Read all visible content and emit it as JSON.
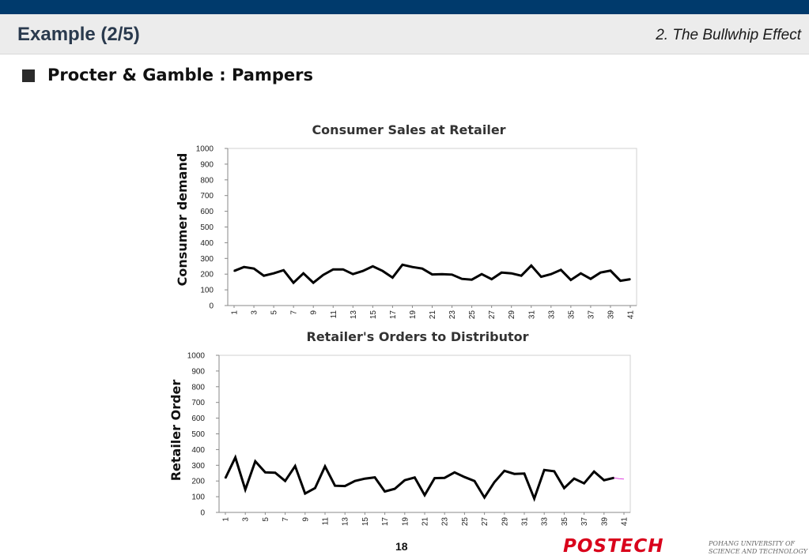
{
  "header": {
    "slide_title": "Example (2/5)",
    "section_title": "2. The Bullwhip Effect"
  },
  "bullet": {
    "text": "Procter & Gamble : Pampers"
  },
  "colors": {
    "top_band": "#003a6c",
    "header_bg": "#ececec",
    "series_line": "#000000",
    "logo": "#d9001b",
    "tail_line": "#e040e0"
  },
  "chart_data": [
    {
      "type": "line",
      "title": "Consumer Sales at Retailer",
      "ylabel": "Consumer demand",
      "xlabel": "",
      "ylim": [
        0,
        1000
      ],
      "ystep": 100,
      "x_tick_labels": [
        "1",
        "3",
        "5",
        "7",
        "9",
        "11",
        "13",
        "15",
        "17",
        "19",
        "21",
        "23",
        "25",
        "27",
        "29",
        "31",
        "33",
        "35",
        "37",
        "39",
        "41"
      ],
      "x": [
        1,
        2,
        3,
        4,
        5,
        6,
        7,
        8,
        9,
        10,
        11,
        12,
        13,
        14,
        15,
        16,
        17,
        18,
        19,
        20,
        21,
        22,
        23,
        24,
        25,
        26,
        27,
        28,
        29,
        30,
        31,
        32,
        33,
        34,
        35,
        36,
        37,
        38,
        39,
        40,
        41
      ],
      "values": [
        220,
        245,
        235,
        190,
        205,
        225,
        145,
        205,
        145,
        195,
        230,
        230,
        200,
        220,
        250,
        220,
        178,
        260,
        245,
        235,
        198,
        200,
        197,
        170,
        165,
        200,
        168,
        210,
        205,
        190,
        255,
        183,
        200,
        227,
        163,
        205,
        170,
        210,
        222,
        158,
        168
      ]
    },
    {
      "type": "line",
      "title": "Retailer's Orders to Distributor",
      "ylabel": "Retailer Order",
      "xlabel": "",
      "ylim": [
        0,
        1000
      ],
      "ystep": 100,
      "x_tick_labels": [
        "1",
        "3",
        "5",
        "7",
        "9",
        "11",
        "13",
        "15",
        "17",
        "19",
        "21",
        "23",
        "25",
        "27",
        "29",
        "31",
        "33",
        "35",
        "37",
        "39",
        "41"
      ],
      "x": [
        1,
        2,
        3,
        4,
        5,
        6,
        7,
        8,
        9,
        10,
        11,
        12,
        13,
        14,
        15,
        16,
        17,
        18,
        19,
        20,
        21,
        22,
        23,
        24,
        25,
        26,
        27,
        28,
        29,
        30,
        31,
        32,
        33,
        34,
        35,
        36,
        37,
        38,
        39,
        40
      ],
      "values": [
        218,
        350,
        145,
        325,
        255,
        253,
        200,
        295,
        120,
        155,
        293,
        170,
        168,
        200,
        215,
        223,
        133,
        150,
        205,
        222,
        110,
        218,
        220,
        255,
        225,
        200,
        95,
        193,
        265,
        245,
        247,
        88,
        270,
        262,
        155,
        215,
        185,
        260,
        205,
        220
      ],
      "tail_values": [
        220,
        215,
        212
      ]
    }
  ],
  "footer": {
    "page_number": "18",
    "logo_text": "POSTECH",
    "logo_subtitle_line1": "POHANG UNIVERSITY OF",
    "logo_subtitle_line2": "SCIENCE AND TECHNOLOGY"
  }
}
